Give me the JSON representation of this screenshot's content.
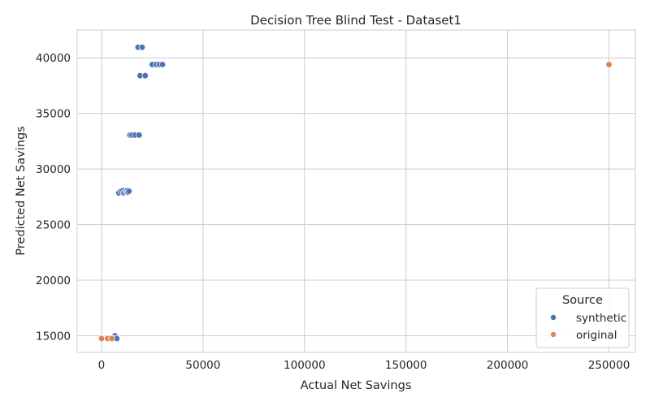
{
  "chart_data": {
    "type": "scatter",
    "title": "Decision Tree Blind Test - Dataset1",
    "xlabel": "Actual Net Savings",
    "ylabel": "Predicted Net Savings",
    "xlim": [
      -12000,
      263000
    ],
    "ylim": [
      13500,
      42500
    ],
    "xticks": [
      0,
      50000,
      100000,
      150000,
      200000,
      250000
    ],
    "yticks": [
      15000,
      20000,
      25000,
      30000,
      35000,
      40000
    ],
    "grid": true,
    "legend": {
      "title": "Source",
      "placement": "lower-right",
      "entries": [
        {
          "name": "synthetic",
          "color": "#4c72b0"
        },
        {
          "name": "original",
          "color": "#dd8452"
        }
      ]
    },
    "series": [
      {
        "name": "synthetic",
        "color": "#4c72b0",
        "points": [
          {
            "x": 18000,
            "y": 40950
          },
          {
            "x": 20000,
            "y": 40950
          },
          {
            "x": 25000,
            "y": 39400
          },
          {
            "x": 27000,
            "y": 39400
          },
          {
            "x": 28500,
            "y": 39400
          },
          {
            "x": 30000,
            "y": 39400
          },
          {
            "x": 19000,
            "y": 38400
          },
          {
            "x": 21500,
            "y": 38400
          },
          {
            "x": 14000,
            "y": 33050
          },
          {
            "x": 15000,
            "y": 33050
          },
          {
            "x": 16500,
            "y": 33050
          },
          {
            "x": 18500,
            "y": 33050
          },
          {
            "x": 8500,
            "y": 27850
          },
          {
            "x": 9500,
            "y": 28000
          },
          {
            "x": 10500,
            "y": 28050
          },
          {
            "x": 11000,
            "y": 27850
          },
          {
            "x": 12000,
            "y": 27950
          },
          {
            "x": 12500,
            "y": 28050
          },
          {
            "x": 13000,
            "y": 27900
          },
          {
            "x": 13500,
            "y": 28000
          },
          {
            "x": 6000,
            "y": 14950
          },
          {
            "x": 6500,
            "y": 15000
          },
          {
            "x": 5500,
            "y": 14800
          },
          {
            "x": 7500,
            "y": 14750
          }
        ]
      },
      {
        "name": "original",
        "color": "#dd8452",
        "points": [
          {
            "x": 0,
            "y": 14750
          },
          {
            "x": 3000,
            "y": 14750
          },
          {
            "x": 5000,
            "y": 14750
          },
          {
            "x": 250000,
            "y": 39400
          }
        ]
      }
    ]
  }
}
